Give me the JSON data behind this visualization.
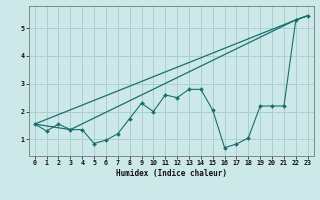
{
  "xlabel": "Humidex (Indice chaleur)",
  "background_color": "#cce8e8",
  "grid_color": "#aacfcf",
  "line_color": "#1a6e6e",
  "xlim": [
    -0.5,
    23.5
  ],
  "ylim": [
    0.4,
    5.8
  ],
  "yticks": [
    1,
    2,
    3,
    4,
    5
  ],
  "xticks": [
    0,
    1,
    2,
    3,
    4,
    5,
    6,
    7,
    8,
    9,
    10,
    11,
    12,
    13,
    14,
    15,
    16,
    17,
    18,
    19,
    20,
    21,
    22,
    23
  ],
  "line1_x": [
    0,
    1,
    2,
    3,
    4,
    5,
    6,
    7,
    8,
    9,
    10,
    11,
    12,
    13,
    14,
    15,
    16,
    17,
    18,
    19,
    20,
    21,
    22,
    23
  ],
  "line1_y": [
    1.55,
    1.3,
    1.55,
    1.35,
    1.35,
    0.85,
    0.97,
    1.2,
    1.75,
    2.3,
    2.0,
    2.6,
    2.5,
    2.8,
    2.8,
    2.05,
    0.7,
    0.83,
    1.05,
    2.2,
    2.2,
    2.2,
    5.3,
    5.45
  ],
  "line2_x": [
    0,
    22,
    23
  ],
  "line2_y": [
    1.55,
    5.3,
    5.45
  ],
  "line3_x": [
    0,
    3,
    22,
    23
  ],
  "line3_y": [
    1.55,
    1.35,
    5.3,
    5.45
  ]
}
